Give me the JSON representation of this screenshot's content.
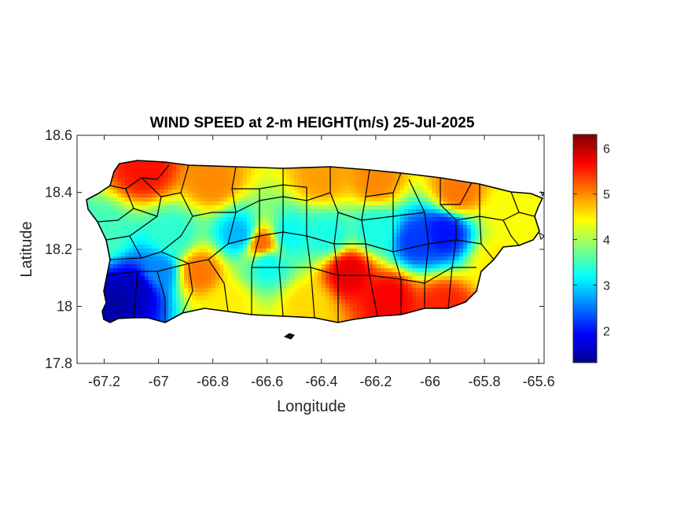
{
  "chart_data": {
    "type": "heatmap",
    "title": "WIND SPEED at 2-m HEIGHT(m/s) 25-Jul-2025",
    "xlabel": "Longitude",
    "ylabel": "Latitude",
    "xlim": [
      -67.3,
      -65.58
    ],
    "ylim": [
      17.8,
      18.6
    ],
    "x_ticks": [
      -67.2,
      -67.0,
      -66.8,
      -66.6,
      -66.4,
      -66.2,
      -66.0,
      -65.8,
      -65.6
    ],
    "x_tick_labels": [
      "-67.2",
      "-67",
      "-66.8",
      "-66.6",
      "-66.4",
      "-66.2",
      "-66",
      "-65.8",
      "-65.6"
    ],
    "y_ticks": [
      17.8,
      18.0,
      18.2,
      18.4,
      18.6
    ],
    "y_tick_labels": [
      "17.8",
      "18",
      "18.2",
      "18.4",
      "18.6"
    ],
    "colormap": "jet",
    "colorbar": {
      "range": [
        1.3,
        6.3
      ],
      "ticks": [
        2,
        3,
        4,
        5,
        6
      ],
      "tick_labels": [
        "2",
        "3",
        "4",
        "5",
        "6"
      ]
    },
    "field_centers": [
      {
        "lon": -67.15,
        "lat": 18.02,
        "value": 1.5
      },
      {
        "lon": -67.08,
        "lat": 18.06,
        "value": 1.6
      },
      {
        "lon": -67.0,
        "lat": 18.12,
        "value": 2.6
      },
      {
        "lon": -66.95,
        "lat": 18.25,
        "value": 3.4
      },
      {
        "lon": -67.2,
        "lat": 18.25,
        "value": 3.5
      },
      {
        "lon": -66.7,
        "lat": 18.25,
        "value": 2.8
      },
      {
        "lon": -66.52,
        "lat": 18.25,
        "value": 3.2
      },
      {
        "lon": -66.6,
        "lat": 18.15,
        "value": 3.2
      },
      {
        "lon": -66.85,
        "lat": 18.12,
        "value": 5.1
      },
      {
        "lon": -66.62,
        "lat": 18.22,
        "value": 5.2
      },
      {
        "lon": -66.3,
        "lat": 18.12,
        "value": 5.8
      },
      {
        "lon": -66.15,
        "lat": 18.03,
        "value": 5.7
      },
      {
        "lon": -65.95,
        "lat": 18.0,
        "value": 5.5
      },
      {
        "lon": -66.05,
        "lat": 18.23,
        "value": 2.2
      },
      {
        "lon": -65.95,
        "lat": 18.26,
        "value": 2.0
      },
      {
        "lon": -66.2,
        "lat": 18.27,
        "value": 3.3
      },
      {
        "lon": -66.38,
        "lat": 18.25,
        "value": 3.3
      },
      {
        "lon": -67.05,
        "lat": 18.48,
        "value": 5.6
      },
      {
        "lon": -66.8,
        "lat": 18.44,
        "value": 5.0
      },
      {
        "lon": -66.4,
        "lat": 18.45,
        "value": 4.9
      },
      {
        "lon": -66.2,
        "lat": 18.44,
        "value": 5.0
      },
      {
        "lon": -65.9,
        "lat": 18.4,
        "value": 5.1
      },
      {
        "lon": -65.7,
        "lat": 18.33,
        "value": 4.4
      },
      {
        "lon": -66.45,
        "lat": 18.0,
        "value": 4.6
      },
      {
        "lon": -66.75,
        "lat": 18.0,
        "value": 4.5
      },
      {
        "lon": -65.75,
        "lat": 18.15,
        "value": 4.5
      }
    ]
  }
}
